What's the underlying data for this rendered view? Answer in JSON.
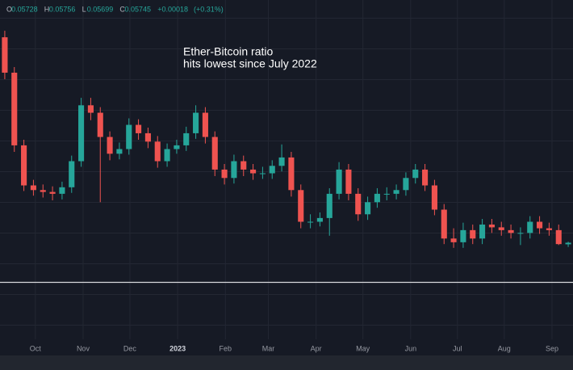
{
  "chart_data": {
    "type": "candlestick",
    "ohlc_legend": [
      {
        "key": "O",
        "value": 0.05728
      },
      {
        "key": "H",
        "value": 0.05756
      },
      {
        "key": "L",
        "value": 0.05699
      },
      {
        "key": "C",
        "value": 0.05745
      }
    ],
    "change": "+0.00018",
    "change_percent": "(+0.31%)",
    "annotation": [
      "Ether-Bitcoin ratio",
      "hits lowest since July 2022"
    ],
    "up_color": "#26a69a",
    "down_color": "#ef5350",
    "open": [
      0.0795,
      0.0757,
      0.0679,
      0.0636,
      0.0631,
      0.0629,
      0.0627,
      0.0634,
      0.0662,
      0.0722,
      0.0714,
      0.0688,
      0.067,
      0.0675,
      0.0701,
      0.0692,
      0.0683,
      0.0662,
      0.0675,
      0.0679,
      0.0692,
      0.0714,
      0.0688,
      0.0653,
      0.0644,
      0.0662,
      0.0653,
      0.0649,
      0.0649,
      0.0657,
      0.0666,
      0.0631,
      0.0597,
      0.0597,
      0.0601,
      0.0627,
      0.0653,
      0.0627,
      0.0605,
      0.0618,
      0.0627,
      0.0627,
      0.0631,
      0.0644,
      0.0653,
      0.0636,
      0.061,
      0.0579,
      0.0575,
      0.0588,
      0.0579,
      0.0594,
      0.0591,
      0.0588,
      0.0585,
      0.0585,
      0.0597,
      0.059,
      0.0588,
      0.05728
    ],
    "high": [
      0.0802,
      0.0763,
      0.0685,
      0.0642,
      0.0637,
      0.0635,
      0.064,
      0.0668,
      0.073,
      0.073,
      0.072,
      0.0694,
      0.0682,
      0.0708,
      0.0707,
      0.0698,
      0.0689,
      0.0681,
      0.0685,
      0.0699,
      0.0722,
      0.072,
      0.0694,
      0.0659,
      0.0669,
      0.0668,
      0.0659,
      0.0656,
      0.0663,
      0.068,
      0.0672,
      0.0637,
      0.0605,
      0.0607,
      0.0633,
      0.0661,
      0.0659,
      0.0633,
      0.0624,
      0.0633,
      0.0634,
      0.0637,
      0.065,
      0.0659,
      0.0659,
      0.0642,
      0.0616,
      0.059,
      0.0596,
      0.0594,
      0.06,
      0.06,
      0.0597,
      0.0594,
      0.0591,
      0.0603,
      0.0603,
      0.0596,
      0.0594,
      0.05756
    ],
    "low": [
      0.075,
      0.0672,
      0.063,
      0.0625,
      0.0623,
      0.062,
      0.0621,
      0.0628,
      0.0656,
      0.0706,
      0.0618,
      0.0663,
      0.0664,
      0.0669,
      0.0685,
      0.0676,
      0.0655,
      0.0656,
      0.067,
      0.0673,
      0.0686,
      0.0681,
      0.0646,
      0.0637,
      0.0638,
      0.0646,
      0.0642,
      0.0643,
      0.0643,
      0.0651,
      0.0624,
      0.059,
      0.059,
      0.0592,
      0.0582,
      0.0621,
      0.062,
      0.0598,
      0.0599,
      0.0612,
      0.062,
      0.0621,
      0.0625,
      0.0638,
      0.063,
      0.0604,
      0.0573,
      0.0569,
      0.0569,
      0.0573,
      0.0573,
      0.0585,
      0.0582,
      0.0579,
      0.0572,
      0.0579,
      0.0584,
      0.0582,
      0.0572,
      0.05699
    ],
    "close": [
      0.0757,
      0.0679,
      0.0636,
      0.0631,
      0.0629,
      0.0627,
      0.0634,
      0.0662,
      0.0722,
      0.0714,
      0.0688,
      0.067,
      0.0675,
      0.0701,
      0.0692,
      0.0683,
      0.0662,
      0.0675,
      0.0679,
      0.0692,
      0.0714,
      0.0688,
      0.0653,
      0.0644,
      0.0662,
      0.0653,
      0.0649,
      0.0649,
      0.0657,
      0.0666,
      0.0631,
      0.0597,
      0.0597,
      0.0601,
      0.0627,
      0.0653,
      0.0627,
      0.0605,
      0.0618,
      0.0627,
      0.0627,
      0.0631,
      0.0644,
      0.0653,
      0.0636,
      0.061,
      0.0579,
      0.0575,
      0.0588,
      0.0579,
      0.0594,
      0.0591,
      0.0588,
      0.0585,
      0.0585,
      0.0597,
      0.059,
      0.0588,
      0.0573,
      0.05745
    ],
    "xlim": [
      -0.5,
      59.5
    ],
    "ylim": [
      0.0535,
      0.0835
    ],
    "xticks": [
      {
        "value": 3.2,
        "label": "Oct"
      },
      {
        "value": 8.2,
        "label": "Nov"
      },
      {
        "value": 13.1,
        "label": "Dec"
      },
      {
        "value": 18.1,
        "label": "2023"
      },
      {
        "value": 23.1,
        "label": "Feb"
      },
      {
        "value": 27.6,
        "label": "Mar"
      },
      {
        "value": 32.6,
        "label": "Apr"
      },
      {
        "value": 37.5,
        "label": "May"
      },
      {
        "value": 42.5,
        "label": "Jun"
      },
      {
        "value": 47.4,
        "label": "Jul"
      },
      {
        "value": 52.3,
        "label": "Aug"
      },
      {
        "value": 57.3,
        "label": "Sep"
      }
    ],
    "grid": true
  }
}
